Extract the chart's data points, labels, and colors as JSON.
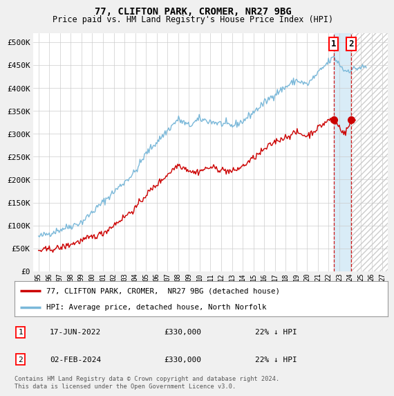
{
  "title": "77, CLIFTON PARK, CROMER, NR27 9BG",
  "subtitle": "Price paid vs. HM Land Registry's House Price Index (HPI)",
  "ylabel_ticks": [
    "£0",
    "£50K",
    "£100K",
    "£150K",
    "£200K",
    "£250K",
    "£300K",
    "£350K",
    "£400K",
    "£450K",
    "£500K"
  ],
  "ytick_values": [
    0,
    50000,
    100000,
    150000,
    200000,
    250000,
    300000,
    350000,
    400000,
    450000,
    500000
  ],
  "ylim": [
    0,
    520000
  ],
  "xlim_start": 1994.5,
  "xlim_end": 2027.5,
  "hpi_color": "#7ab8d9",
  "price_color": "#cc0000",
  "marker1_date": 2022.46,
  "marker2_date": 2024.09,
  "marker1_price": 330000,
  "marker2_price": 330000,
  "shade_start": 2022.46,
  "shade_end": 2024.09,
  "hatch_start": 2024.09,
  "legend_label1": "77, CLIFTON PARK, CROMER,  NR27 9BG (detached house)",
  "legend_label2": "HPI: Average price, detached house, North Norfolk",
  "table_row1": [
    "1",
    "17-JUN-2022",
    "£330,000",
    "22% ↓ HPI"
  ],
  "table_row2": [
    "2",
    "02-FEB-2024",
    "£330,000",
    "22% ↓ HPI"
  ],
  "footer": "Contains HM Land Registry data © Crown copyright and database right 2024.\nThis data is licensed under the Open Government Licence v3.0.",
  "bg_color": "#f0f0f0",
  "plot_bg": "#ffffff",
  "grid_color": "#cccccc"
}
